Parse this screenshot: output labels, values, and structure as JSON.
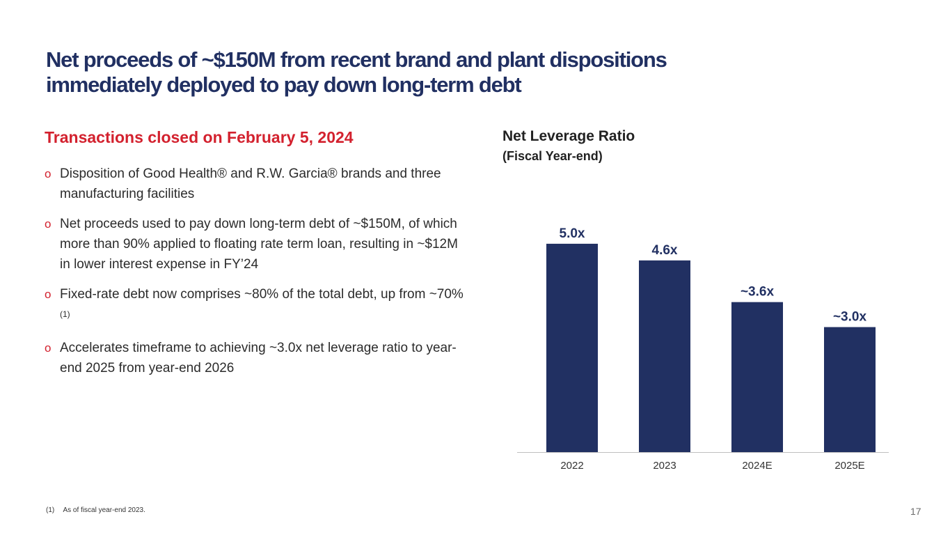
{
  "title": {
    "line1": "Net proceeds of ~$150M from recent brand and plant dispositions",
    "line2": "immediately deployed to pay down long-term debt"
  },
  "subhead": "Transactions closed on February 5, 2024",
  "bullet_marker": "o",
  "bullets": [
    {
      "text": "Disposition of Good Health® and R.W. Garcia® brands and three manufacturing facilities",
      "sup": ""
    },
    {
      "text": "Net proceeds used to pay down long-term debt of ~$150M, of which more than 90% applied to floating rate term loan, resulting in ~$12M in lower interest expense in FY’24",
      "sup": ""
    },
    {
      "text": "Fixed-rate debt now comprises ~80% of the total debt, up from ~70%",
      "sup": "(1)"
    },
    {
      "text": "Accelerates timeframe to achieving ~3.0x net leverage ratio to year-end 2025 from year-end 2026",
      "sup": ""
    }
  ],
  "chart_data": {
    "type": "bar",
    "title": "Net Leverage Ratio",
    "subtitle": "(Fiscal Year-end)",
    "categories": [
      "2022",
      "2023",
      "2024E",
      "2025E"
    ],
    "values": [
      5.0,
      4.6,
      3.6,
      3.0
    ],
    "value_labels": [
      "5.0x",
      "4.6x",
      "~3.6x",
      "~3.0x"
    ],
    "xlabel": "",
    "ylabel": "",
    "ylim": [
      0,
      5.5
    ],
    "grid": false,
    "colors": {
      "bar": "#213062",
      "axis": "#bfbfbf"
    }
  },
  "footnote": {
    "num": "(1)",
    "text": "As of fiscal year-end 2023."
  },
  "page_number": "17",
  "colors": {
    "title": "#213062",
    "accent": "#d3212e"
  }
}
